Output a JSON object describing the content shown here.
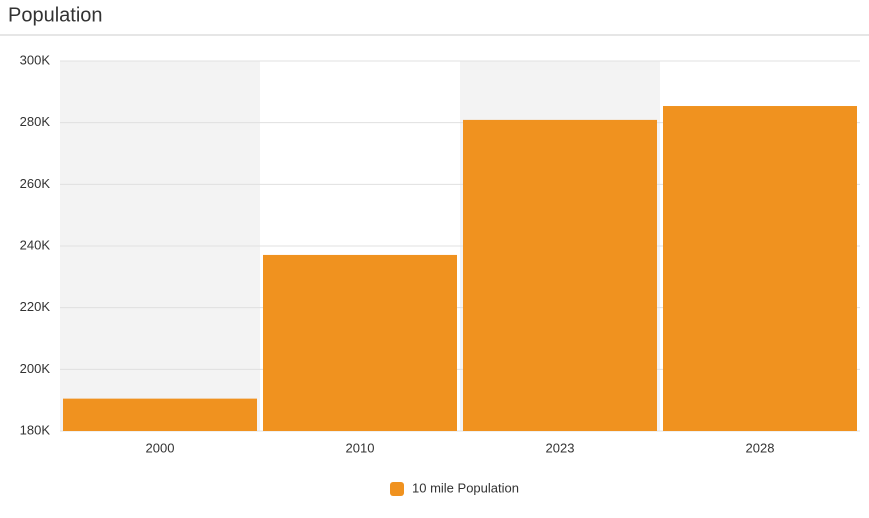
{
  "chart_data": {
    "type": "bar",
    "title": "Population",
    "categories": [
      "2000",
      "2010",
      "2023",
      "2028"
    ],
    "series": [
      {
        "name": "10 mile Population",
        "color": "#f0921f",
        "values": [
          190500,
          237100,
          280900,
          285400
        ]
      }
    ],
    "ylim": [
      180000,
      300000
    ],
    "yticks": [
      {
        "value": 180000,
        "label": "180K"
      },
      {
        "value": 200000,
        "label": "200K"
      },
      {
        "value": 220000,
        "label": "220K"
      },
      {
        "value": 240000,
        "label": "240K"
      },
      {
        "value": 260000,
        "label": "260K"
      },
      {
        "value": 280000,
        "label": "280K"
      },
      {
        "value": 300000,
        "label": "300K"
      }
    ],
    "grid": true,
    "legend": "bottom"
  }
}
